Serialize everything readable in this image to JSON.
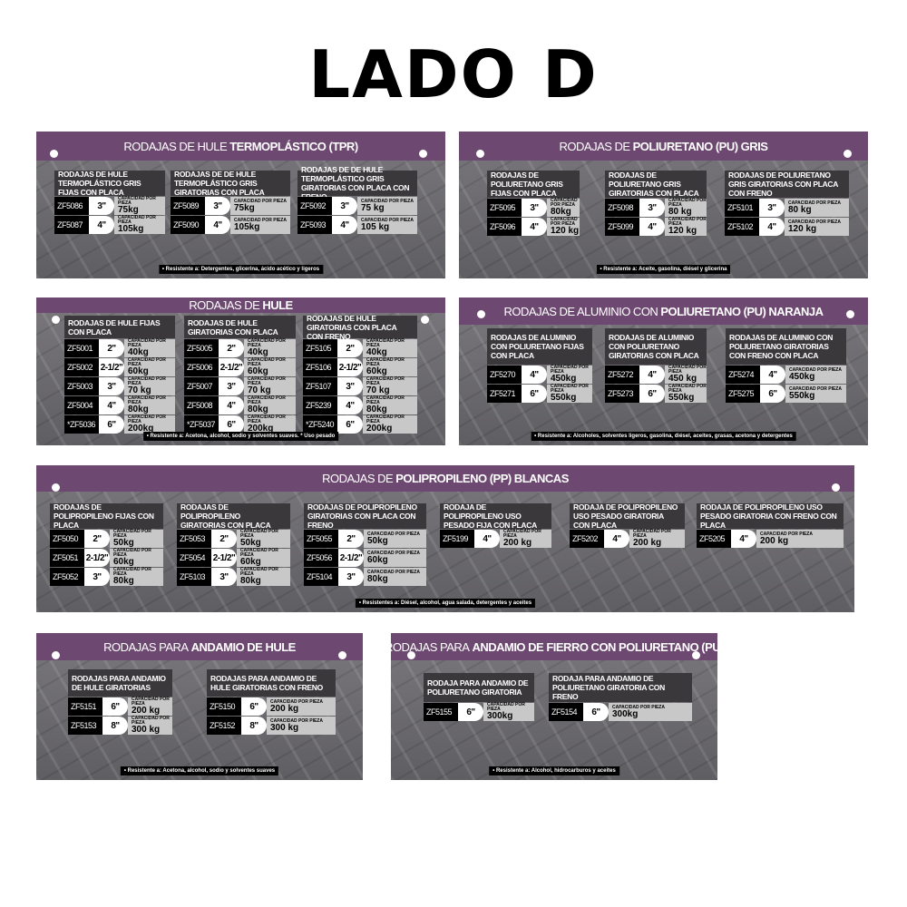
{
  "page_title": "LADO D",
  "capacity_label": "CAPACIDAD POR PIEZA",
  "colors": {
    "header": "#6d4870",
    "plate": "#727075",
    "code_cell": "#000000",
    "capacity_cell": "#c9c8c9"
  },
  "panels": [
    {
      "title_normal": "RODAJAS DE HULE",
      "title_bold": "TERMOPLÁSTICO (TPR)",
      "cards": [
        {
          "title": "RODAJAS DE HULE TERMOPLÁSTICO GRIS FIJAS CON PLACA",
          "rows": [
            {
              "code": "ZF5086",
              "size": "3\"",
              "cap": "75kg"
            },
            {
              "code": "ZF5087",
              "size": "4\"",
              "cap": "105kg"
            }
          ]
        },
        {
          "title": "RODAJAS DE DE HULE TERMOPLÁSTICO GRIS GIRATORIAS CON PLACA",
          "rows": [
            {
              "code": "ZF5089",
              "size": "3\"",
              "cap": "75kg"
            },
            {
              "code": "ZF5090",
              "size": "4\"",
              "cap": "105kg"
            }
          ]
        },
        {
          "title": "RODAJAS DE DE HULE TERMOPLÁSTICO GRIS GIRATORIAS CON PLACA CON FRENO",
          "rows": [
            {
              "code": "ZF5092",
              "size": "3\"",
              "cap": "75 kg"
            },
            {
              "code": "ZF5093",
              "size": "4\"",
              "cap": "105 kg"
            }
          ]
        }
      ],
      "footer": "• Resistente a: Detergentes, glicerina, ácido acético y ligeros"
    },
    {
      "title_normal": "RODAJAS DE",
      "title_bold": "POLIURETANO (PU) GRIS",
      "cards": [
        {
          "title": "RODAJAS DE POLIURETANO GRIS FIJAS CON PLACA",
          "rows": [
            {
              "code": "ZF5095",
              "size": "3\"",
              "cap": "80kg"
            },
            {
              "code": "ZF5096",
              "size": "4\"",
              "cap": "120 kg"
            }
          ]
        },
        {
          "title": "RODAJAS DE POLIURETANO GRIS GIRATORIAS CON PLACA",
          "rows": [
            {
              "code": "ZF5098",
              "size": "3\"",
              "cap": "80 kg"
            },
            {
              "code": "ZF5099",
              "size": "4\"",
              "cap": "120 kg"
            }
          ]
        },
        {
          "title": "RODAJAS DE POLIURETANO GRIS GIRATORIAS CON PLACA CON FRENO",
          "rows": [
            {
              "code": "ZF5101",
              "size": "3\"",
              "cap": "80 kg"
            },
            {
              "code": "ZF5102",
              "size": "4\"",
              "cap": "120 kg"
            }
          ]
        }
      ],
      "footer": "• Resistente a: Aceite, gasolina, diésel y glicerina"
    },
    {
      "title_normal": "RODAJAS DE",
      "title_bold": "HULE",
      "cards": [
        {
          "title": "RODAJAS DE HULE FIJAS CON PLACA",
          "rows": [
            {
              "code": "ZF5001",
              "size": "2\"",
              "cap": "40kg"
            },
            {
              "code": "ZF5002",
              "size": "2-1/2\"",
              "cap": "60kg"
            },
            {
              "code": "ZF5003",
              "size": "3\"",
              "cap": "70 kg"
            },
            {
              "code": "ZF5004",
              "size": "4\"",
              "cap": "80kg"
            },
            {
              "code": "*ZF5036",
              "size": "6\"",
              "cap": "200kg"
            }
          ]
        },
        {
          "title": "RODAJAS DE HULE GIRATORIAS CON PLACA",
          "rows": [
            {
              "code": "ZF5005",
              "size": "2\"",
              "cap": "40kg"
            },
            {
              "code": "ZF5006",
              "size": "2-1/2\"",
              "cap": "60kg"
            },
            {
              "code": "ZF5007",
              "size": "3\"",
              "cap": "70 kg"
            },
            {
              "code": "ZF5008",
              "size": "4\"",
              "cap": "80kg"
            },
            {
              "code": "*ZF5037",
              "size": "6\"",
              "cap": "200kg"
            }
          ]
        },
        {
          "title": "RODAJAS DE HULE GIRATORIAS CON PLACA CON FRENO",
          "rows": [
            {
              "code": "ZF5105",
              "size": "2\"",
              "cap": "40kg"
            },
            {
              "code": "ZF5106",
              "size": "2-1/2\"",
              "cap": "60kg"
            },
            {
              "code": "ZF5107",
              "size": "3\"",
              "cap": "70 kg"
            },
            {
              "code": "ZF5239",
              "size": "4\"",
              "cap": "80kg"
            },
            {
              "code": "*ZF5240",
              "size": "6\"",
              "cap": "200kg"
            }
          ]
        }
      ],
      "footer": "• Resistente a: Acetona, alcohol, sodio y solventes suaves. * Uso pesado"
    },
    {
      "title_normal": "RODAJAS DE ALUMINIO CON",
      "title_bold": "POLIURETANO (PU) NARANJA",
      "cards": [
        {
          "title": "RODAJAS DE ALUMINIO CON POLIURETANO FIJAS CON PLACA",
          "rows": [
            {
              "code": "ZF5270",
              "size": "4\"",
              "cap": "450kg"
            },
            {
              "code": "ZF5271",
              "size": "6\"",
              "cap": "550kg"
            }
          ]
        },
        {
          "title": "RODAJAS DE ALUMINIO CON POLIURETANO GIRATORIAS CON PLACA",
          "rows": [
            {
              "code": "ZF5272",
              "size": "4\"",
              "cap": "450 kg"
            },
            {
              "code": "ZF5273",
              "size": "6\"",
              "cap": "550kg"
            }
          ]
        },
        {
          "title": "RODAJAS DE ALUMINIO CON POLIURETANO GIRATORIAS CON FRENO CON PLACA",
          "rows": [
            {
              "code": "ZF5274",
              "size": "4\"",
              "cap": "450kg"
            },
            {
              "code": "ZF5275",
              "size": "6\"",
              "cap": "550kg"
            }
          ]
        }
      ],
      "footer": "• Resistente a: Alcoholes, solventes ligeros, gasolina, diésel, aceites, grasas, acetona y detergentes"
    },
    {
      "title_normal": "RODAJAS DE",
      "title_bold": "POLIPROPILENO (PP) BLANCAS",
      "cards": [
        {
          "title": "RODAJAS DE POLIPROPILENO FIJAS CON PLACA",
          "rows": [
            {
              "code": "ZF5050",
              "size": "2\"",
              "cap": "50kg"
            },
            {
              "code": "ZF5051",
              "size": "2-1/2\"",
              "cap": "60kg"
            },
            {
              "code": "ZF5052",
              "size": "3\"",
              "cap": "80kg"
            }
          ]
        },
        {
          "title": "RODAJAS DE POLIPROPILENO GIRATORIAS CON PLACA",
          "rows": [
            {
              "code": "ZF5053",
              "size": "2\"",
              "cap": "50kg"
            },
            {
              "code": "ZF5054",
              "size": "2-1/2\"",
              "cap": "60kg"
            },
            {
              "code": "ZF5103",
              "size": "3\"",
              "cap": "80kg"
            }
          ]
        },
        {
          "title": "RODAJAS DE POLIPROPILENO GIRATORIAS CON PLACA CON FRENO",
          "rows": [
            {
              "code": "ZF5055",
              "size": "2\"",
              "cap": "50kg"
            },
            {
              "code": "ZF5056",
              "size": "2-1/2\"",
              "cap": "60kg"
            },
            {
              "code": "ZF5104",
              "size": "3\"",
              "cap": "80kg"
            }
          ]
        },
        {
          "title": "RODAJA DE POLIPROPILENO USO PESADO FIJA CON PLACA",
          "rows": [
            {
              "code": "ZF5199",
              "size": "4\"",
              "cap": "200 kg"
            }
          ]
        },
        {
          "title": "RODAJA DE POLIPROPILENO USO PESADO GIRATORIA CON PLACA",
          "rows": [
            {
              "code": "ZF5202",
              "size": "4\"",
              "cap": "200 kg"
            }
          ]
        },
        {
          "title": "RODAJA DE POLIPROPILENO USO PESADO GIRATORIA CON FRENO CON PLACA",
          "rows": [
            {
              "code": "ZF5205",
              "size": "4\"",
              "cap": "200 kg"
            }
          ]
        }
      ],
      "footer": "• Resistentes a: Diésel, alcohol, agua salada, detergentes y aceites"
    },
    {
      "title_normal": "RODAJAS PARA",
      "title_bold": "ANDAMIO DE HULE",
      "cards": [
        {
          "title": "RODAJAS PARA ANDAMIO DE HULE GIRATORIAS",
          "rows": [
            {
              "code": "ZF5151",
              "size": "6\"",
              "cap": "200 kg"
            },
            {
              "code": "ZF5153",
              "size": "8\"",
              "cap": "300 kg"
            }
          ]
        },
        {
          "title": "RODAJAS PARA ANDAMIO DE HULE GIRATORIAS CON FRENO",
          "rows": [
            {
              "code": "ZF5150",
              "size": "6\"",
              "cap": "200 kg"
            },
            {
              "code": "ZF5152",
              "size": "8\"",
              "cap": "300 kg"
            }
          ]
        }
      ],
      "footer": "• Resistente a: Acetona, alcohol, sodio y solventes suaves"
    },
    {
      "title_normal": "RODAJAS PARA",
      "title_bold": "ANDAMIO DE FIERRO CON POLIURETANO (PU)",
      "cards": [
        {
          "title": "RODAJA PARA ANDAMIO DE POLIURETANO GIRATORIA",
          "rows": [
            {
              "code": "ZF5155",
              "size": "6\"",
              "cap": "300kg"
            }
          ]
        },
        {
          "title": "RODAJA PARA ANDAMIO DE POLIURETANO GIRATORIA CON FRENO",
          "rows": [
            {
              "code": "ZF5154",
              "size": "6\"",
              "cap": "300kg"
            }
          ]
        }
      ],
      "footer": "• Resistente a: Alcohol, hidrocarburos y aceites"
    }
  ]
}
